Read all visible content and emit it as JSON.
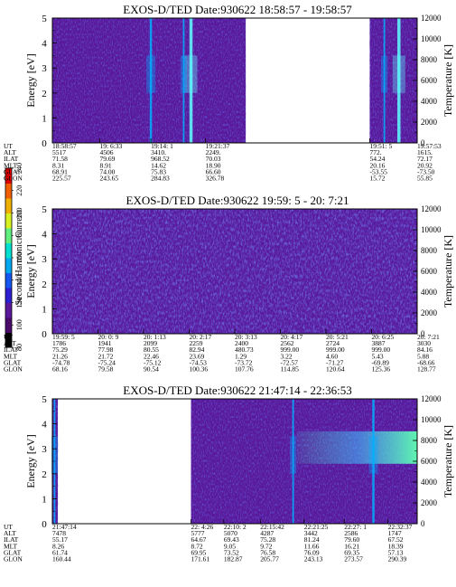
{
  "chart_data": [
    {
      "type": "heatmap",
      "title": "EXOS-D/TED   Date:930622   18:58:57 - 19:58:57",
      "ylabel": "Energy [eV]",
      "y2label": "Temperature [K]",
      "ylim": [
        0,
        5
      ],
      "yticks": [
        0,
        1,
        2,
        3,
        4,
        5
      ],
      "y2lim": [
        0,
        12000
      ],
      "y2ticks": [
        0,
        2000,
        4000,
        6000,
        8000,
        10000,
        12000
      ],
      "data_segments": [
        [
          0.0,
          0.53
        ],
        [
          0.87,
          1.0
        ]
      ],
      "bright_streaks": [
        {
          "at": 0.27,
          "level": "high"
        },
        {
          "at": 0.38,
          "level": "very-high"
        },
        {
          "at": 0.36,
          "level": "medium"
        },
        {
          "at": 0.95,
          "level": "very-high"
        },
        {
          "at": 0.91,
          "level": "medium"
        }
      ],
      "row_labels": [
        "UT",
        "ALT",
        "ILAT",
        "MLT",
        "GLAT",
        "GLON"
      ],
      "ephemeris": [
        {
          "at": 0.0,
          "values": [
            "18:58:57",
            "5517",
            "71.58",
            "8.31",
            "68.91",
            "225.57"
          ]
        },
        {
          "at": 0.13,
          "values": [
            "19: 6:33",
            "4506",
            "79.69",
            "8.91",
            "74.00",
            "243.65"
          ]
        },
        {
          "at": 0.27,
          "values": [
            "19:14: 1",
            "3410.",
            "968.52",
            "14.62",
            "75.83",
            "284.83"
          ]
        },
        {
          "at": 0.42,
          "values": [
            "19:21:37",
            "2249.",
            "70.03",
            "18.90",
            "66.60",
            "326.78"
          ]
        },
        {
          "at": 0.87,
          "values": [
            "19:51: 5",
            "772.",
            "54.24",
            "20.16",
            "-53.55",
            "15.72"
          ]
        },
        {
          "at": 1.0,
          "values": [
            "19:57:53",
            "1615.",
            "72.17",
            "20.92",
            "-73.50",
            "55.85"
          ]
        }
      ]
    },
    {
      "type": "heatmap",
      "title": "EXOS-D/TED   Date:930622   19:59: 5 - 20: 7:21",
      "ylabel": "Energy [eV]",
      "y2label": "Temperature [K]",
      "ylim": [
        0,
        5
      ],
      "yticks": [
        0,
        1,
        2,
        3,
        4,
        5
      ],
      "y2lim": [
        0,
        12000
      ],
      "y2ticks": [
        0,
        2000,
        4000,
        6000,
        8000,
        10000,
        12000
      ],
      "data_segments": [
        [
          0.0,
          1.0
        ]
      ],
      "bright_streaks": [],
      "row_labels": [
        "UT",
        "ALT",
        "ILAT",
        "MLT",
        "GLAT",
        "GLON"
      ],
      "ephemeris": [
        {
          "at": 0.0,
          "values": [
            "19:59: 5",
            "1786",
            "75.29",
            "21.26",
            "-74.78",
            "68.16"
          ]
        },
        {
          "at": 0.125,
          "values": [
            "20: 0: 9",
            "1941",
            "77.98",
            "21.72",
            "-75.24",
            "79.58"
          ]
        },
        {
          "at": 0.25,
          "values": [
            "20: 1:13",
            "2099",
            "80.55",
            "22.46",
            "-75.12",
            "90.54"
          ]
        },
        {
          "at": 0.375,
          "values": [
            "20: 2:17",
            "2259",
            "82.94",
            "23.69",
            "-74.53",
            "100.36"
          ]
        },
        {
          "at": 0.5,
          "values": [
            "20: 3:13",
            "2400",
            "480.73",
            "1.29",
            "-73.72",
            "107.76"
          ]
        },
        {
          "at": 0.625,
          "values": [
            "20: 4:17",
            "2562",
            "999.00",
            "3.22",
            "-72.57",
            "114.85"
          ]
        },
        {
          "at": 0.75,
          "values": [
            "20: 5:21",
            "2724",
            "999.00",
            "4.60",
            "-71.27",
            "120.64"
          ]
        },
        {
          "at": 0.875,
          "values": [
            "20: 6:25",
            "3887",
            "999.00",
            "5.43",
            "-69.89",
            "125.36"
          ]
        },
        {
          "at": 1.0,
          "values": [
            "20: 7:21",
            "3030",
            "84.16",
            "5.88",
            "-68.66",
            "128.77"
          ]
        }
      ]
    },
    {
      "type": "heatmap",
      "title": "EXOS-D/TED   Date:930622   21:47:14 - 22:36:53",
      "ylabel": "Energy [eV]",
      "y2label": "Temperature [K]",
      "ylim": [
        0,
        5
      ],
      "yticks": [
        0,
        1,
        2,
        3,
        4,
        5
      ],
      "y2lim": [
        0,
        12000
      ],
      "y2ticks": [
        0,
        2000,
        4000,
        6000,
        8000,
        10000,
        12000
      ],
      "data_segments": [
        [
          0.0,
          0.015
        ],
        [
          0.38,
          1.0
        ]
      ],
      "bright_streaks": [
        {
          "at": 0.006,
          "level": "medium"
        },
        {
          "at": 0.66,
          "level": "medium"
        },
        {
          "at": 0.88,
          "level": "high"
        }
      ],
      "bright_band": {
        "from": 0.67,
        "to": 1.0,
        "ymin": 2.4,
        "ymax": 3.7
      },
      "row_labels": [
        "UT",
        "ALT",
        "ILAT",
        "MLT",
        "GLAT",
        "GLON"
      ],
      "ephemeris": [
        {
          "at": 0.0,
          "values": [
            "21:47:14",
            "7478",
            "55.17",
            "8.26",
            "61.74",
            "160.44"
          ]
        },
        {
          "at": 0.38,
          "values": [
            "22: 4:26",
            "5777",
            "64.67",
            "8.72",
            "69.95",
            "171.61"
          ]
        },
        {
          "at": 0.47,
          "values": [
            "22:10: 2",
            "5070",
            "69.43",
            "9.05",
            "73.52",
            "182.87"
          ]
        },
        {
          "at": 0.57,
          "values": [
            "22:15:42",
            "4287",
            "75.28",
            "9.72",
            "76.58",
            "205.77"
          ]
        },
        {
          "at": 0.69,
          "values": [
            "22:21:25",
            "3442",
            "81.24",
            "11.66",
            "76.09",
            "243.13"
          ]
        },
        {
          "at": 0.8,
          "values": [
            "22:27: 1",
            "2586",
            "79.60",
            "16.21",
            "69.35",
            "273.57"
          ]
        },
        {
          "at": 0.92,
          "values": [
            "22:32:37",
            "1747",
            "67.52",
            "18.39",
            "57.13",
            "290.39"
          ]
        }
      ]
    }
  ],
  "colorbar": {
    "label": "Second Harmonic Current",
    "range": [
      80,
      240
    ],
    "ticks": [
      "80",
      "100",
      "120",
      "140",
      "160",
      "180",
      "200",
      "220",
      "240"
    ],
    "colors": [
      "#000000",
      "#4a0a6a",
      "#5a189a",
      "#2b1fd0",
      "#1457f0",
      "#00a8f0",
      "#00e0d0",
      "#60f080",
      "#d8f020",
      "#f0b000",
      "#f06000",
      "#e00000"
    ]
  },
  "colors": {
    "background": "#5a189a",
    "noise_blue": "#3a2fd0",
    "streak": "#00b0ff",
    "streak_bright": "#60ffff",
    "band": "#40ffd0"
  }
}
